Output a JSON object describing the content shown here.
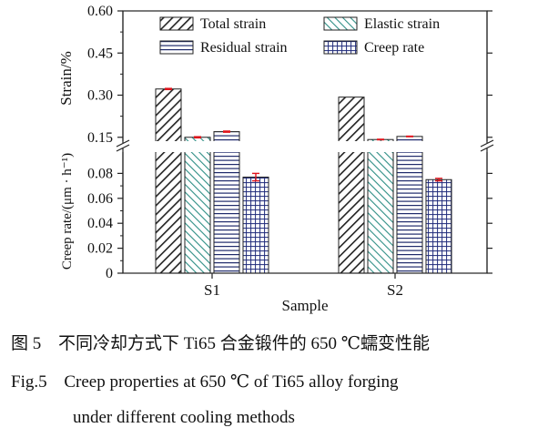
{
  "chart_data": {
    "type": "bar",
    "broken_axis": true,
    "categories": [
      "S1",
      "S2"
    ],
    "xlabel": "Sample",
    "panels": [
      {
        "ylabel": "Strain/%",
        "ylim": [
          0.12,
          0.6
        ],
        "yticks": [
          "0.15",
          "0.30",
          "0.45",
          "0.60"
        ],
        "tick_values": [
          0.15,
          0.3,
          0.45,
          0.6
        ],
        "series": [
          {
            "name": "Total strain",
            "values": [
              0.322,
              0.293
            ],
            "errors": [
              0.002,
              0
            ]
          },
          {
            "name": "Elastic strain",
            "values": [
              0.15,
              0.142
            ],
            "errors": [
              0.002,
              0.001
            ]
          },
          {
            "name": "Residual strain",
            "values": [
              0.17,
              0.153
            ],
            "errors": [
              0.002,
              0.001
            ]
          }
        ]
      },
      {
        "ylabel": "Creep rate/(μm · h⁻¹)",
        "ylim": [
          0,
          0.1
        ],
        "yticks": [
          "0",
          "0.02",
          "0.04",
          "0.06",
          "0.08"
        ],
        "tick_values": [
          0,
          0.02,
          0.04,
          0.06,
          0.08
        ],
        "series": [
          {
            "name": "Creep rate",
            "values": [
              0.077,
              0.075
            ],
            "errors": [
              0.003,
              0.001
            ]
          }
        ]
      }
    ],
    "legend": {
      "placement": "top",
      "entries": [
        "Total strain",
        "Elastic strain",
        "Residual strain",
        "Creep rate"
      ]
    },
    "grid": false
  },
  "caption": {
    "cn_label": "图 5",
    "cn_text": "不同冷却方式下 Ti65 合金锻件的 650 ℃蠕变性能",
    "en_label": "Fig.5",
    "en_line1": "Creep properties at 650 ℃ of Ti65 alloy forging",
    "en_line2": "under different cooling methods"
  },
  "colors": {
    "frame": "#222222",
    "total_fill": "#2a2a2a",
    "elastic_fill": "#2f8f86",
    "residual_fill": "#1f2a6b",
    "creep_fill": "#1f2a7a",
    "error_bar": "#e0141c"
  }
}
